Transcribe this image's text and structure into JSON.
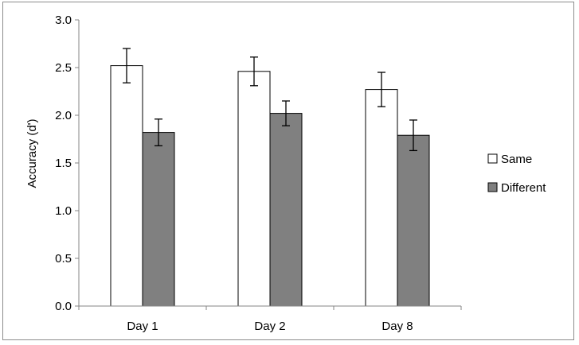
{
  "chart_data": {
    "type": "bar",
    "categories": [
      "Day 1",
      "Day 2",
      "Day 8"
    ],
    "series": [
      {
        "name": "Same",
        "values": [
          2.52,
          2.46,
          2.27
        ],
        "errors": [
          0.18,
          0.15,
          0.18
        ],
        "color": "#ffffff"
      },
      {
        "name": "Different",
        "values": [
          1.82,
          2.02,
          1.79
        ],
        "errors": [
          0.14,
          0.13,
          0.16
        ],
        "color": "#808080"
      }
    ],
    "title": "",
    "xlabel": "",
    "ylabel": "Accuracy (d')",
    "ylim": [
      0,
      3
    ],
    "yticks": [
      "0.0",
      "0.5",
      "1.0",
      "1.5",
      "2.0",
      "2.5",
      "3.0"
    ],
    "grid": false,
    "legend_position": "right"
  }
}
